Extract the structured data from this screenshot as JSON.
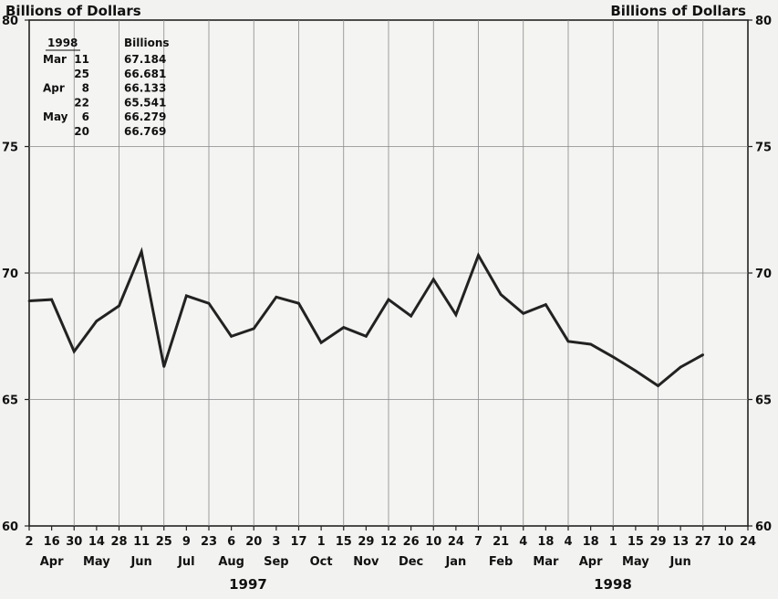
{
  "chart_data": {
    "type": "line",
    "ylabel": "Billions of Dollars",
    "ylim": [
      60,
      80
    ],
    "yticks": [
      60,
      65,
      70,
      75,
      80
    ],
    "grid": true,
    "line_color": "#222222",
    "xtick_labels": [
      "2",
      "16",
      "30",
      "14",
      "28",
      "11",
      "25",
      "9",
      "23",
      "6",
      "20",
      "3",
      "17",
      "1",
      "15",
      "29",
      "12",
      "26",
      "10",
      "24",
      "7",
      "21",
      "4",
      "18",
      "4",
      "18",
      "1",
      "15",
      "29",
      "13",
      "27",
      "10",
      "24"
    ],
    "months": [
      "Apr",
      "May",
      "Jun",
      "Jul",
      "Aug",
      "Sep",
      "Oct",
      "Nov",
      "Dec",
      "Jan",
      "Feb",
      "Mar",
      "Apr",
      "May",
      "Jun"
    ],
    "years": [
      "1997",
      "1998"
    ],
    "series": [
      {
        "values": [
          68.9,
          68.95,
          66.9,
          68.1,
          68.7,
          70.85,
          66.3,
          69.1,
          68.8,
          67.5,
          67.8,
          69.05,
          68.8,
          67.25,
          67.85,
          67.5,
          68.95,
          68.3,
          69.75,
          68.35,
          70.7,
          69.15,
          68.4,
          68.75,
          67.3,
          67.184,
          66.681,
          66.133,
          65.541,
          66.279,
          66.769
        ]
      }
    ],
    "table": {
      "header_left": "1998",
      "header_right": "Billions",
      "rows": [
        {
          "month": "Mar",
          "day": "11",
          "value": "67.184"
        },
        {
          "month": "",
          "day": "25",
          "value": "66.681"
        },
        {
          "month": "Apr",
          "day": "8",
          "value": "66.133"
        },
        {
          "month": "",
          "day": "22",
          "value": "65.541"
        },
        {
          "month": "May",
          "day": "6",
          "value": "66.279"
        },
        {
          "month": "",
          "day": "20",
          "value": "66.769"
        }
      ]
    }
  }
}
